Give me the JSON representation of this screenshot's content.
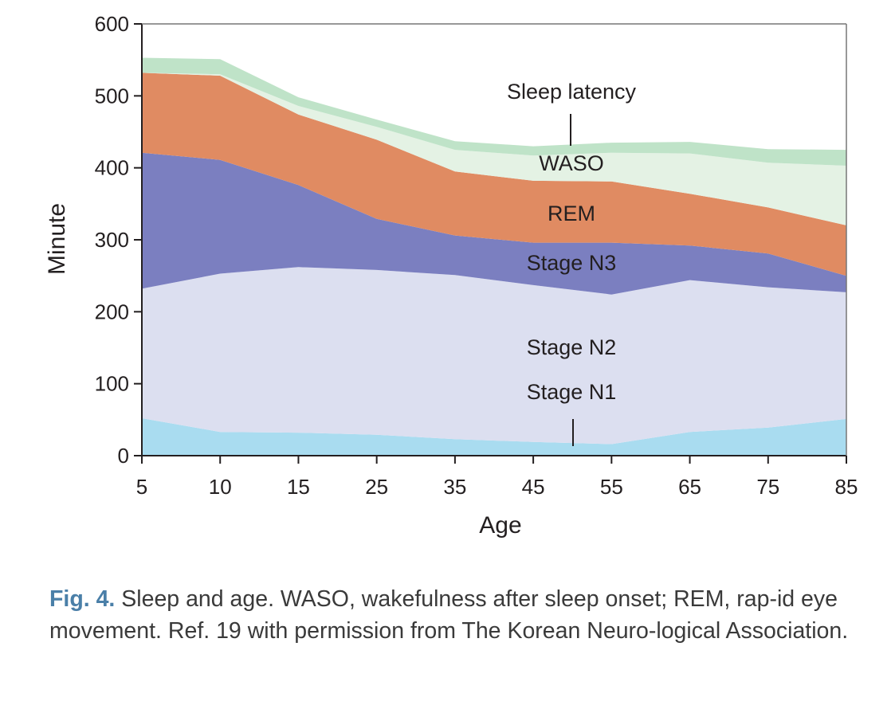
{
  "chart_data": {
    "type": "area",
    "stacked": true,
    "xlabel": "Age",
    "ylabel": "Minute",
    "x": [
      5,
      10,
      15,
      25,
      35,
      45,
      55,
      65,
      75,
      85
    ],
    "x_tick_labels": [
      "5",
      "10",
      "15",
      "25",
      "35",
      "45",
      "55",
      "65",
      "75",
      "85"
    ],
    "ylim": [
      0,
      600
    ],
    "y_ticks": [
      0,
      100,
      200,
      300,
      400,
      500,
      600
    ],
    "series": [
      {
        "name": "Stage N1",
        "values": [
          52,
          33,
          32,
          29,
          23,
          19,
          16,
          33,
          39,
          51
        ]
      },
      {
        "name": "Stage N2",
        "values": [
          180,
          220,
          230,
          229,
          228,
          218,
          208,
          211,
          195,
          176
        ]
      },
      {
        "name": "Stage N3",
        "values": [
          189,
          158,
          114,
          71,
          55,
          59,
          72,
          48,
          47,
          23
        ]
      },
      {
        "name": "REM",
        "values": [
          111,
          117,
          98,
          110,
          89,
          86,
          85,
          72,
          64,
          70
        ]
      },
      {
        "name": "WASO",
        "values": [
          0,
          2,
          12,
          18,
          30,
          35,
          40,
          56,
          62,
          83
        ]
      },
      {
        "name": "Sleep latency",
        "values": [
          21,
          21,
          12,
          10,
          12,
          13,
          14,
          16,
          19,
          22
        ]
      }
    ],
    "grid": false,
    "legend": "inline"
  },
  "labels": {
    "sleep_latency": "Sleep latency",
    "waso": "WASO",
    "rem": "REM",
    "stage_n3": "Stage N3",
    "stage_n2": "Stage N2",
    "stage_n1": "Stage N1"
  },
  "caption": {
    "label": "Fig. 4.",
    "text": " Sleep and age. WASO, wakefulness after sleep onset; REM, rap-id eye movement. Ref. 19 with permission from The Korean Neuro-logical Association."
  },
  "colors": {
    "Stage N1": "#a9dcf0",
    "Stage N2": "#dcdff0",
    "Stage N3": "#7b7fc0",
    "REM": "#e08b62",
    "WASO": "#e4f2e4",
    "Sleep latency": "#bfe3c8"
  }
}
